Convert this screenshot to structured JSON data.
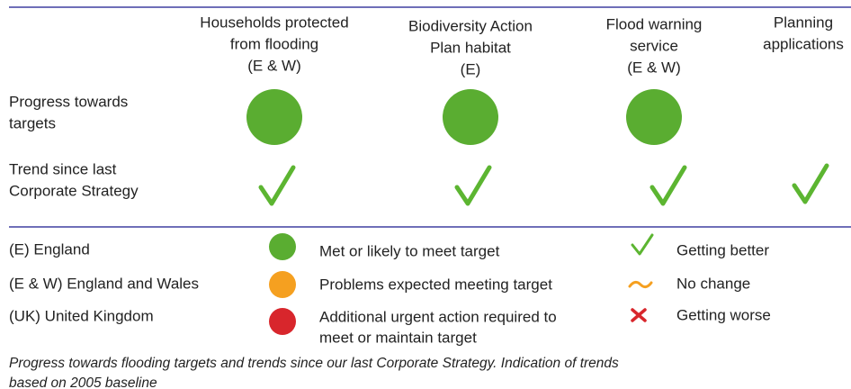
{
  "table": {
    "columns": [
      [
        "Households protected",
        "from flooding",
        "(E & W)"
      ],
      [
        "Biodiversity Action",
        "Plan habitat",
        "(E)"
      ],
      [
        "Flood warning",
        "service",
        "(E & W)"
      ],
      [
        "Planning",
        "applications"
      ]
    ],
    "rows": [
      [
        "Progress towards",
        "targets"
      ],
      [
        "Trend since last",
        "Corporate Strategy"
      ]
    ]
  },
  "legend": {
    "regions": [
      "(E) England",
      "(E & W) England and Wales",
      "(UK) United Kingdom"
    ],
    "progress": [
      [
        "Met or likely to meet target"
      ],
      [
        "Problems expected meeting target"
      ],
      [
        "Additional urgent action required to",
        "meet or maintain target"
      ]
    ],
    "trends": [
      "Getting better",
      "No change",
      "Getting worse"
    ]
  },
  "caption": [
    "Progress towards flooding targets and trends since our last Corporate Strategy. Indication of trends",
    "based on 2005 baseline"
  ]
}
